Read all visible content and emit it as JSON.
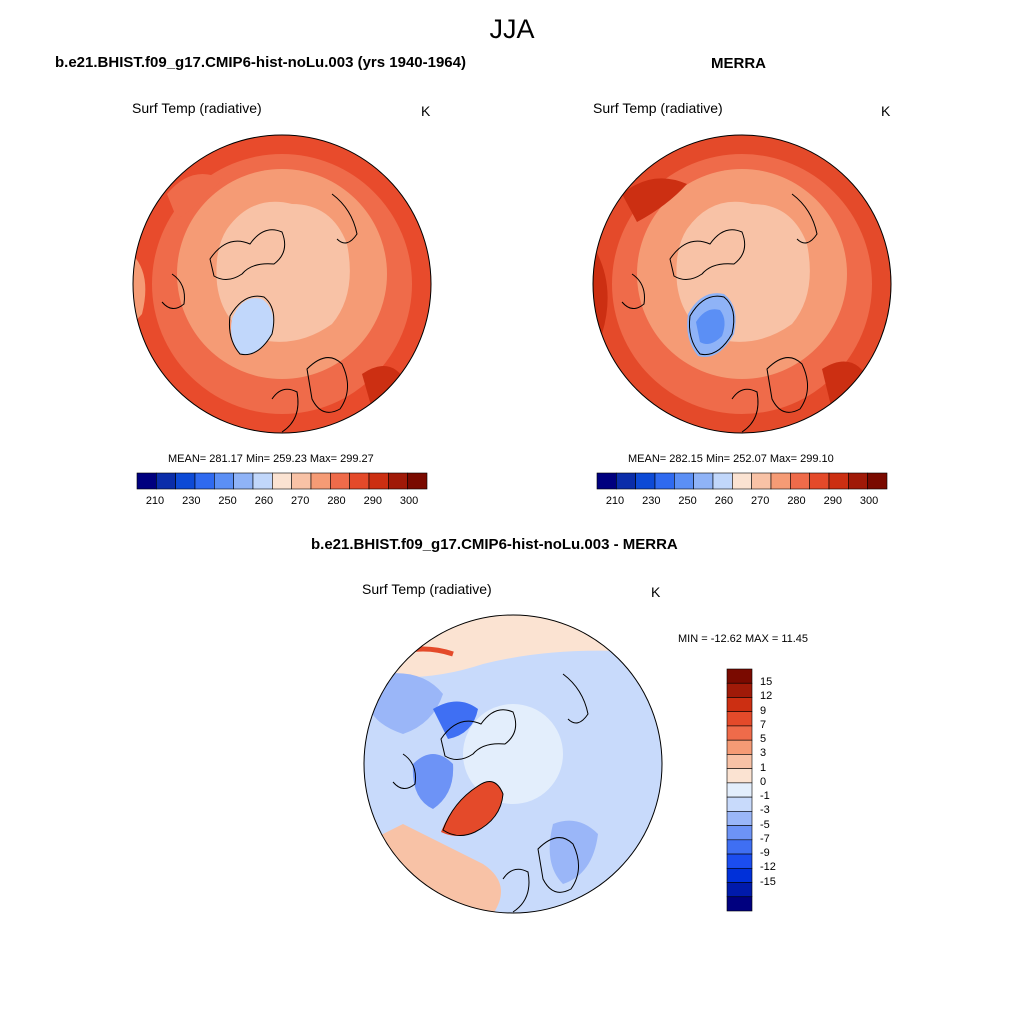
{
  "page_title": "JJA",
  "palette": {
    "absolute": [
      "#00007f",
      "#0a2daa",
      "#0d4ad6",
      "#2f6af0",
      "#5b8ff5",
      "#8fb3f7",
      "#c1d7fb",
      "#fbe3d2",
      "#f8c2a6",
      "#f59b75",
      "#ef6b4a",
      "#e44a2a",
      "#cc2f12",
      "#a01a08",
      "#7a0a00"
    ],
    "difference": [
      "#00007f",
      "#001aab",
      "#0030d9",
      "#1b4df0",
      "#3f6ff3",
      "#6d93f6",
      "#9ab6f8",
      "#c8dafb",
      "#e3eefc",
      "#fbe3d2",
      "#f8c2a6",
      "#f59b75",
      "#ef6b4a",
      "#e44a2a",
      "#cc2f12",
      "#a01a08",
      "#7a0a00"
    ]
  },
  "panels": {
    "model": {
      "title": "b.e21.BHIST.f09_g17.CMIP6-hist-noLu.003 (yrs 1940-1964)",
      "variable": "Surf Temp (radiative)",
      "units": "K",
      "stats": "MEAN= 281.17  Min= 259.23  Max= 299.27",
      "colorbar_labels": [
        "210",
        "230",
        "250",
        "260",
        "270",
        "280",
        "290",
        "300"
      ]
    },
    "obs": {
      "title": "MERRA",
      "variable": "Surf Temp (radiative)",
      "units": "K",
      "stats": "MEAN= 282.15  Min= 252.07  Max= 299.10",
      "colorbar_labels": [
        "210",
        "230",
        "250",
        "260",
        "270",
        "280",
        "290",
        "300"
      ]
    },
    "diff": {
      "title": "b.e21.BHIST.f09_g17.CMIP6-hist-noLu.003 - MERRA",
      "variable": "Surf Temp (radiative)",
      "units": "K",
      "stats": "MIN = -12.62 MAX =  11.45",
      "colorbar_labels": [
        "15",
        "12",
        "9",
        "7",
        "5",
        "3",
        "1",
        "0",
        "-1",
        "-3",
        "-5",
        "-7",
        "-9",
        "-12",
        "-15"
      ]
    }
  }
}
